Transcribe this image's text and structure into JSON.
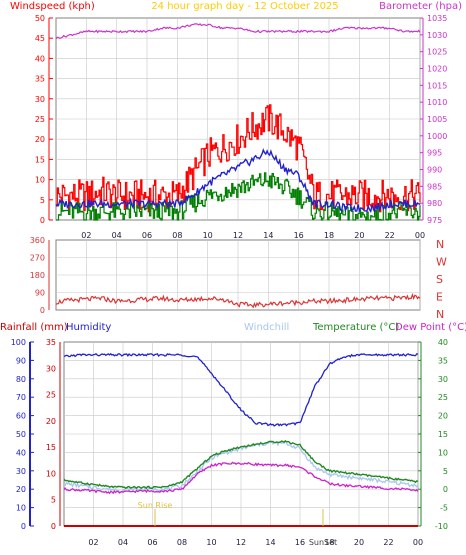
{
  "header": {
    "left_title": "Windspeed (kph)",
    "center_title": "24 hour graph day - 12 October 2025",
    "right_title": "Barometer (hpa)"
  },
  "colors": {
    "wind_gust": "#ff0000",
    "wind_avg": "#2222cc",
    "wind_low": "#008000",
    "barometer": "#cc33cc",
    "title": "#ffcc00",
    "direction": "#dd3333",
    "humidity": "#2222cc",
    "windchill": "#a9c7ee",
    "temperature": "#228822",
    "dewpoint": "#cc22cc",
    "rainfall": "#cc0000",
    "sun": "#e0c040",
    "grid": "#c8c8c8"
  },
  "wind_chart": {
    "y_left_ticks": [
      "0",
      "5",
      "10",
      "15",
      "20",
      "25",
      "30",
      "35",
      "40",
      "45",
      "50"
    ],
    "y_right_ticks": [
      "975",
      "980",
      "985",
      "990",
      "995",
      "1000",
      "1005",
      "1010",
      "1015",
      "1020",
      "1025",
      "1030",
      "1035"
    ],
    "x_ticks": [
      "02",
      "04",
      "06",
      "08",
      "10",
      "12",
      "14",
      "16",
      "18",
      "20",
      "22",
      "00"
    ]
  },
  "direction_chart": {
    "y_left_ticks": [
      "0",
      "90",
      "180",
      "270",
      "360"
    ],
    "y_right_labels": [
      "N",
      "W",
      "S",
      "E",
      "N"
    ]
  },
  "temp_header": {
    "rainfall": "Rainfall (mm)",
    "humidity": "Humidity",
    "windchill": "Windchill",
    "temperature": "Temperature (°C)",
    "dewpoint": "Dew Point (°C)"
  },
  "temp_chart": {
    "humidity_ticks": [
      "0",
      "10",
      "20",
      "30",
      "40",
      "50",
      "60",
      "70",
      "80",
      "90",
      "100"
    ],
    "rain_ticks": [
      "0",
      "5",
      "10",
      "15",
      "20",
      "25",
      "30",
      "35"
    ],
    "temp_ticks": [
      "-10",
      "-5",
      "0",
      "5",
      "10",
      "15",
      "20",
      "25",
      "30",
      "35",
      "40"
    ],
    "x_ticks": [
      "02",
      "04",
      "06",
      "08",
      "10",
      "12",
      "14",
      "16",
      "18",
      "20",
      "22",
      "00"
    ],
    "sunrise_label": "Sun Rise",
    "sunset_label": "SunSet"
  },
  "chart_data": [
    {
      "type": "line",
      "title": "24 hour graph day - 12 October 2025",
      "xlabel": "",
      "ylabel": "Windspeed (kph)",
      "y2label": "Barometer (hpa)",
      "x": [
        0,
        1,
        2,
        3,
        4,
        5,
        6,
        7,
        8,
        9,
        10,
        11,
        12,
        13,
        14,
        15,
        16,
        17,
        18,
        19,
        20,
        21,
        22,
        23,
        24
      ],
      "ylim": [
        0,
        50
      ],
      "y2lim": [
        975,
        1035
      ],
      "series": [
        {
          "name": "gust",
          "axis": "left",
          "values": [
            6,
            6,
            6,
            7,
            6,
            6,
            6,
            6,
            6,
            11,
            16,
            18,
            20,
            23,
            25,
            22,
            18,
            6,
            6,
            6,
            6,
            6,
            6,
            6,
            6
          ]
        },
        {
          "name": "avg",
          "axis": "left",
          "values": [
            4,
            4,
            4,
            4,
            4,
            4,
            4,
            4,
            4,
            6,
            9,
            11,
            13,
            15,
            17,
            13,
            11,
            4,
            4,
            3,
            3,
            3,
            4,
            4,
            4
          ]
        },
        {
          "name": "low",
          "axis": "left",
          "values": [
            2,
            2,
            2,
            2,
            2,
            2,
            2,
            2,
            2,
            4,
            6,
            7,
            8,
            9,
            10,
            8,
            6,
            2,
            2,
            1,
            1,
            1,
            2,
            2,
            2
          ]
        },
        {
          "name": "barometer",
          "axis": "right",
          "values": [
            1029,
            1030,
            1031,
            1031,
            1031,
            1031,
            1031,
            1032,
            1032,
            1033,
            1033,
            1032,
            1032,
            1031,
            1031,
            1031,
            1031,
            1031,
            1031,
            1032,
            1032,
            1032,
            1032,
            1031,
            1031
          ]
        }
      ]
    },
    {
      "type": "line",
      "ylabel": "",
      "x": [
        0,
        1,
        2,
        3,
        4,
        5,
        6,
        7,
        8,
        9,
        10,
        11,
        12,
        13,
        14,
        15,
        16,
        17,
        18,
        19,
        20,
        21,
        22,
        23,
        24
      ],
      "ylim": [
        0,
        360
      ],
      "series": [
        {
          "name": "direction",
          "values": [
            40,
            50,
            55,
            60,
            45,
            50,
            55,
            60,
            50,
            55,
            60,
            55,
            30,
            25,
            30,
            35,
            40,
            45,
            45,
            50,
            55,
            60,
            60,
            65,
            70
          ]
        }
      ]
    },
    {
      "type": "line",
      "x": [
        0,
        1,
        2,
        3,
        4,
        5,
        6,
        7,
        8,
        9,
        10,
        11,
        12,
        13,
        14,
        15,
        16,
        17,
        18,
        19,
        20,
        21,
        22,
        23,
        24
      ],
      "ylim": [
        -10,
        40
      ],
      "series": [
        {
          "name": "humidity",
          "axis": "humidity",
          "values": [
            92,
            93,
            93,
            93,
            93,
            93,
            93,
            93,
            93,
            92,
            83,
            73,
            63,
            56,
            55,
            55,
            56,
            76,
            88,
            92,
            93,
            93,
            93,
            93,
            93
          ]
        },
        {
          "name": "rainfall",
          "axis": "rain",
          "values": [
            0,
            0,
            0,
            0,
            0,
            0,
            0,
            0,
            0,
            0,
            0,
            0,
            0,
            0,
            0,
            0,
            0,
            0,
            0,
            0,
            0,
            0,
            0,
            0,
            0
          ]
        },
        {
          "name": "windchill",
          "axis": "temp",
          "values": [
            1.5,
            1.0,
            0.5,
            0,
            -0.2,
            0,
            0,
            0,
            1.0,
            4.5,
            8.5,
            10.0,
            11.0,
            12.0,
            12.5,
            12.5,
            11.0,
            6.0,
            4.0,
            3.5,
            3.0,
            2.5,
            2.0,
            1.5,
            1.0
          ]
        },
        {
          "name": "temperature",
          "axis": "temp",
          "values": [
            2.5,
            1.8,
            1.3,
            0.7,
            0.5,
            0.5,
            0.5,
            0.7,
            2.0,
            5.5,
            9.0,
            10.5,
            11.5,
            12.2,
            12.8,
            13.0,
            12.0,
            7.5,
            5.0,
            4.5,
            4.0,
            3.5,
            3.0,
            2.5,
            2.0
          ]
        },
        {
          "name": "dewpoint",
          "axis": "temp",
          "values": [
            0.0,
            -0.2,
            -0.5,
            -0.8,
            -0.8,
            -0.5,
            -0.5,
            -0.5,
            0,
            4.0,
            6.5,
            7.0,
            7.0,
            6.8,
            6.5,
            6.5,
            6.0,
            3.5,
            1.5,
            1.0,
            0.8,
            0.5,
            0.2,
            0,
            -0.5
          ]
        }
      ]
    }
  ]
}
